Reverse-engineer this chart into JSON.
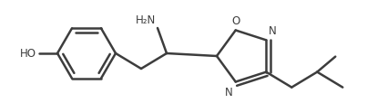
{
  "bg_color": "#ffffff",
  "line_color": "#3d3d3d",
  "line_width": 1.8,
  "text_color": "#3d3d3d",
  "figsize": [
    4.03,
    1.15
  ],
  "dpi": 100,
  "font_size": 8.5,
  "xlim": [
    0,
    403
  ],
  "ylim": [
    0,
    115
  ]
}
